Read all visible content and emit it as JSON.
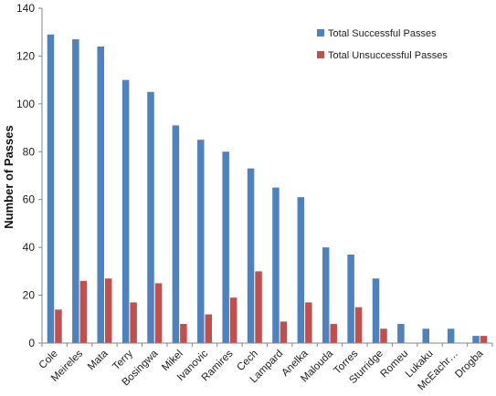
{
  "chart_data": {
    "type": "bar",
    "title": "",
    "xlabel": "",
    "ylabel": "Number of Passes",
    "ylim": [
      0,
      140
    ],
    "yticks": [
      0,
      20,
      40,
      60,
      80,
      100,
      120,
      140
    ],
    "grid": false,
    "legend_position": "top-right",
    "categories": [
      "Cole",
      "Meireles",
      "Mata",
      "Terry",
      "Bosingwa",
      "Mikel",
      "Ivanovic",
      "Ramires",
      "Cech",
      "Lampard",
      "Anelka",
      "Malouda",
      "Torres",
      "Sturridge",
      "Romeu",
      "Lukaku",
      "McEachr…",
      "Drogba"
    ],
    "series": [
      {
        "name": "Total Successful Passes",
        "color": "#4F81BD",
        "values": [
          129,
          127,
          124,
          110,
          105,
          91,
          85,
          80,
          73,
          65,
          61,
          40,
          37,
          27,
          8,
          6,
          6,
          3
        ]
      },
      {
        "name": "Total Unsuccessful Passes",
        "color": "#C0504D",
        "values": [
          14,
          26,
          27,
          17,
          25,
          8,
          12,
          19,
          30,
          9,
          17,
          8,
          15,
          6,
          0,
          0,
          0,
          3
        ]
      }
    ]
  }
}
